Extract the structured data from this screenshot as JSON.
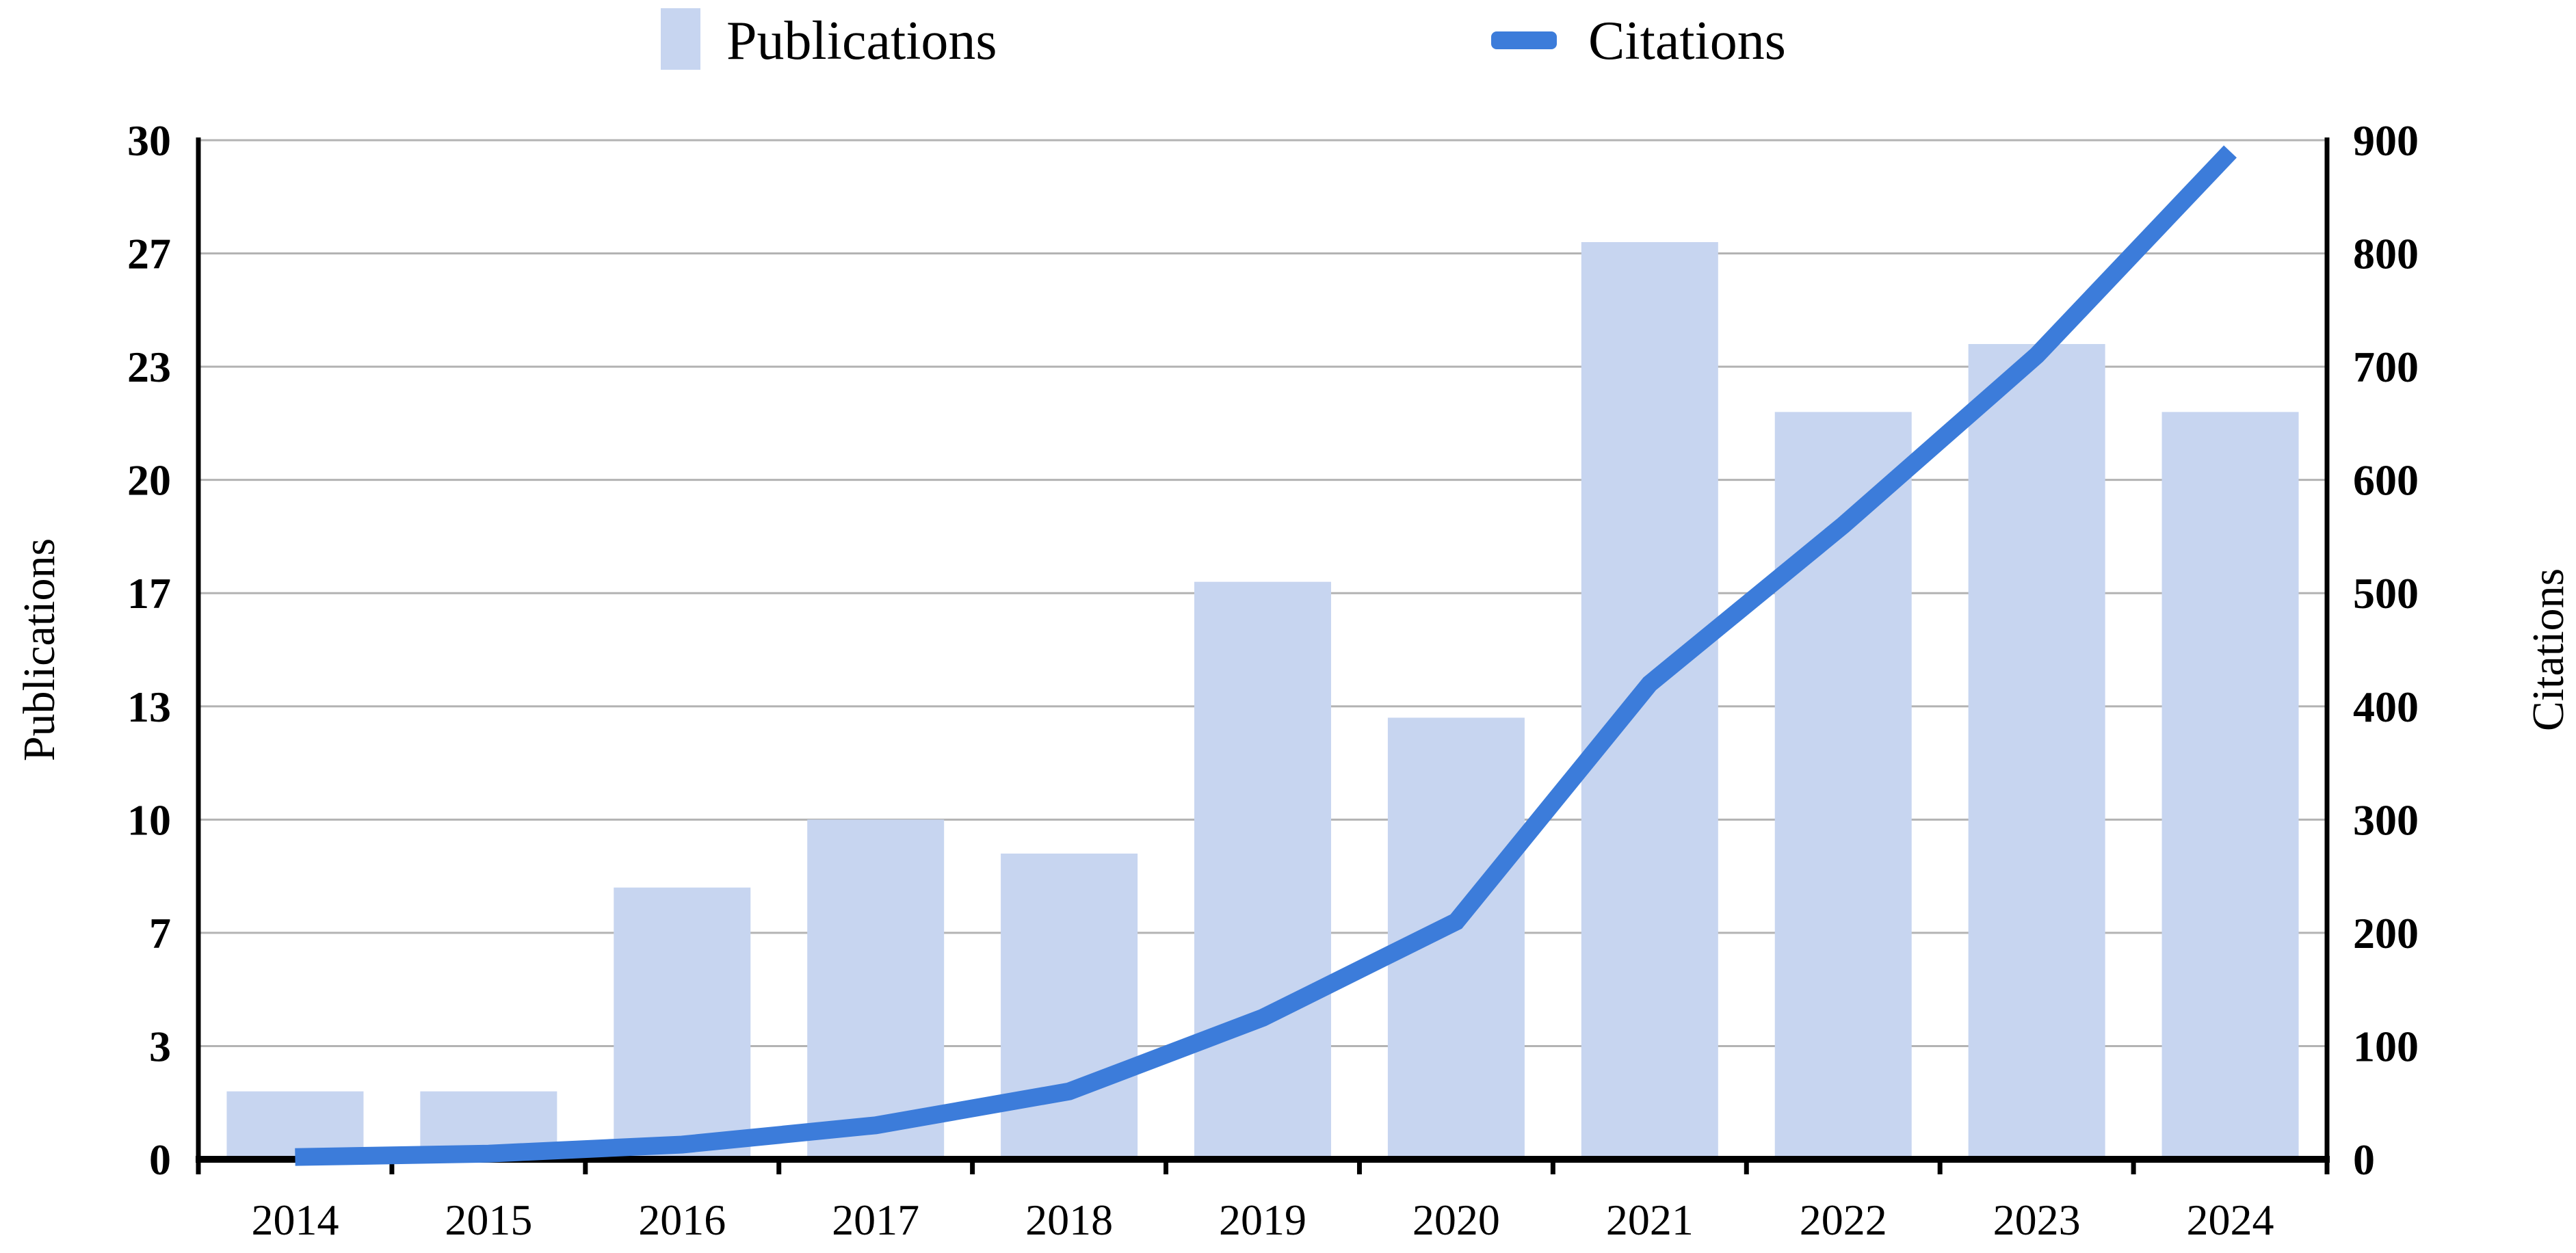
{
  "figure": {
    "background": "#ffffff",
    "legend": {
      "publications_label": "Publications",
      "citations_label": "Citations"
    },
    "left_axis": {
      "title": "Publications",
      "tick_labels": [
        "0",
        "3",
        "7",
        "10",
        "13",
        "17",
        "20",
        "23",
        "27",
        "30"
      ]
    },
    "right_axis": {
      "title": "Citations",
      "tick_labels": [
        "0",
        "100",
        "200",
        "300",
        "400",
        "500",
        "600",
        "700",
        "800",
        "900"
      ]
    },
    "colors": {
      "bar_fill": "#c7d5f0",
      "line": "#3c7cda",
      "gridline": "#b3b3b3",
      "axis": "#000000",
      "text": "#000000"
    }
  },
  "chart_data": {
    "type": "bar",
    "subtype": "bar+line dual axis",
    "title": "",
    "xlabel": "",
    "categories": [
      "2014",
      "2015",
      "2016",
      "2017",
      "2018",
      "2019",
      "2020",
      "2021",
      "2022",
      "2023",
      "2024"
    ],
    "series": [
      {
        "name": "Publications",
        "type": "bar",
        "axis": "left",
        "values": [
          2,
          2,
          8,
          10,
          9,
          17,
          13,
          27,
          22,
          24,
          22
        ]
      },
      {
        "name": "Citations",
        "type": "line",
        "axis": "right",
        "values": [
          2,
          5,
          13,
          30,
          60,
          125,
          210,
          420,
          560,
          710,
          890
        ]
      }
    ],
    "left_ylabel": "Publications",
    "right_ylabel": "Citations",
    "left_ylim": [
      0,
      30
    ],
    "right_ylim": [
      0,
      900
    ],
    "grid": true,
    "gridline_count": 9,
    "legend_position": "top"
  }
}
